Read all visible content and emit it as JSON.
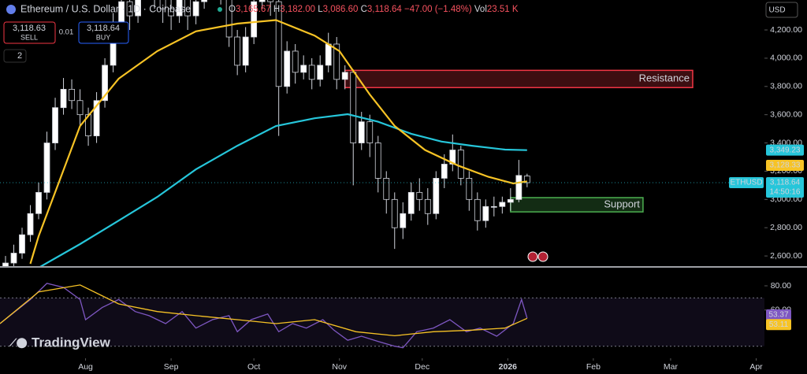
{
  "header": {
    "title": "Ethereum / U.S. Dollar · 1D · Coinbase",
    "ohlc": [
      {
        "label": "O",
        "value": "3,165.67"
      },
      {
        "label": "H",
        "value": "3,182.00"
      },
      {
        "label": "L",
        "value": "3,086.60"
      },
      {
        "label": "C",
        "value": "3,118.64"
      }
    ],
    "change": "−47.00 (−1.48%)",
    "volume_label": "Vol",
    "volume": "23.51 K"
  },
  "trade": {
    "sell_price": "3,118.63",
    "sell": "SELL",
    "spread": "0.01",
    "buy_price": "3,118.64",
    "buy": "BUY"
  },
  "indicator_count": "2",
  "currency": "USD",
  "brand": "TradingView",
  "chart_data": [
    {
      "type": "candlestick",
      "symbol": "ETHUSD",
      "last_price_label": "3,118.64",
      "countdown": "14:50:16",
      "up_color": "#ffffff",
      "down_color": "#000000",
      "x": [
        -29,
        -26,
        -23,
        -20,
        -17,
        -14,
        -11,
        -8,
        -5,
        -2,
        1,
        4,
        7,
        10,
        13,
        16,
        19,
        22,
        25,
        28,
        31,
        34,
        37,
        40,
        43,
        46,
        49,
        52,
        55,
        58,
        61,
        64,
        67,
        70,
        73,
        76,
        79,
        82,
        85,
        88,
        91,
        94,
        97,
        100,
        103,
        106,
        109,
        112,
        115,
        118,
        121,
        124,
        127,
        130,
        133,
        136,
        139,
        142,
        145,
        148,
        151,
        154,
        157,
        160
      ],
      "open": [
        2480,
        2550,
        2620,
        2750,
        2900,
        3050,
        3400,
        3650,
        3780,
        3700,
        3600,
        3450,
        3700,
        3950,
        4250,
        4400,
        4300,
        4650,
        4750,
        4450,
        4350,
        4300,
        4450,
        4300,
        4400,
        4500,
        4550,
        4450,
        4150,
        3950,
        4150,
        4400,
        4500,
        4400,
        3800,
        4050,
        3900,
        3950,
        3850,
        3950,
        4100,
        3850,
        3900,
        3400,
        3550,
        3400,
        3150,
        3000,
        2800,
        2900,
        3050,
        3000,
        2900,
        3150,
        3250,
        3350,
        3150,
        3000,
        2850,
        2950,
        2950,
        2980,
        3000,
        3165.67
      ],
      "high": [
        2600,
        2680,
        2800,
        2960,
        3120,
        3480,
        3720,
        3860,
        3850,
        3780,
        3650,
        3760,
        4000,
        4320,
        4480,
        4460,
        4720,
        4900,
        4800,
        4520,
        4420,
        4520,
        4500,
        4470,
        4580,
        4620,
        4620,
        4500,
        4200,
        4220,
        4480,
        4600,
        4560,
        4450,
        4120,
        4100,
        4020,
        4000,
        4020,
        4180,
        4150,
        3950,
        3920,
        3620,
        3600,
        3450,
        3200,
        3050,
        2980,
        3120,
        3150,
        3080,
        3200,
        3320,
        3460,
        3380,
        3200,
        3050,
        3000,
        3020,
        3020,
        3080,
        3280,
        3182
      ],
      "low": [
        2440,
        2500,
        2580,
        2700,
        2860,
        3000,
        3350,
        3600,
        3640,
        3520,
        3380,
        3400,
        3650,
        3900,
        4180,
        4200,
        4250,
        4580,
        4350,
        4250,
        4200,
        4250,
        4200,
        4240,
        4350,
        4420,
        4380,
        4080,
        3880,
        3900,
        4100,
        4350,
        4300,
        3450,
        3750,
        3820,
        3850,
        3780,
        3800,
        3900,
        3780,
        3780,
        3100,
        3350,
        3300,
        3050,
        2900,
        2650,
        2720,
        2850,
        2920,
        2820,
        2860,
        3080,
        3200,
        3100,
        2920,
        2780,
        2800,
        2880,
        2900,
        2920,
        2980,
        3086.6
      ],
      "close": [
        2550,
        2620,
        2750,
        2900,
        3050,
        3400,
        3650,
        3780,
        3700,
        3600,
        3450,
        3700,
        3950,
        4250,
        4400,
        4300,
        4650,
        4750,
        4450,
        4350,
        4300,
        4450,
        4300,
        4400,
        4500,
        4550,
        4450,
        4150,
        3950,
        4150,
        4400,
        4500,
        4400,
        3800,
        4050,
        3900,
        3950,
        3850,
        3950,
        4100,
        3850,
        3900,
        3400,
        3550,
        3400,
        3150,
        3000,
        2800,
        2900,
        3050,
        3000,
        2900,
        3150,
        3250,
        3350,
        3150,
        3000,
        2850,
        2950,
        2950,
        2980,
        3000,
        3170,
        3118.64
      ],
      "lines": [
        {
          "color": "#26c6da",
          "last_label": "3,349.23",
          "x": [
            -17,
            -2,
            12,
            26,
            40,
            55,
            69,
            83,
            95,
            106,
            118,
            129,
            140,
            152,
            160
          ],
          "values": [
            2517,
            2684,
            2850,
            3018,
            3213,
            3380,
            3520,
            3575,
            3604,
            3550,
            3465,
            3410,
            3380,
            3353,
            3349.23
          ]
        },
        {
          "color": "#f7c325",
          "last_label": "3,128.33",
          "x": [
            -20,
            -17,
            -2,
            12,
            26,
            40,
            55,
            69,
            83,
            92,
            103,
            112,
            123,
            135,
            146,
            155,
            160
          ],
          "values": [
            2545,
            2740,
            3520,
            3855,
            4050,
            4190,
            4245,
            4270,
            4160,
            4050,
            3743,
            3520,
            3350,
            3240,
            3160,
            3113,
            3128.33
          ]
        }
      ],
      "zones": [
        {
          "label": "Resistance",
          "x": [
            94,
            220
          ],
          "y": [
            3792,
            3914
          ],
          "color": "#f23645"
        },
        {
          "label": "Support",
          "x": [
            154,
            202
          ],
          "y": [
            2912,
            3013
          ],
          "color": "#4caf50"
        }
      ],
      "xlim": [
        -31,
        246
      ],
      "ylim": [
        2528,
        4412
      ],
      "yticks": [
        {
          "value": 2600,
          "label": "2,600.00"
        },
        {
          "value": 2800,
          "label": "2,800.00"
        },
        {
          "value": 3000,
          "label": "3,000.00"
        },
        {
          "value": 3200,
          "label": "3,200.00"
        },
        {
          "value": 3400,
          "label": "3,400.00"
        },
        {
          "value": 3600,
          "label": "3,600.00"
        },
        {
          "value": 3800,
          "label": "3,800.00"
        },
        {
          "value": 4000,
          "label": "4,000.00"
        },
        {
          "value": 4200,
          "label": "4,200.00"
        }
      ],
      "xticks": [
        {
          "value": 0,
          "label": "Aug"
        },
        {
          "value": 31,
          "label": "Sep"
        },
        {
          "value": 61,
          "label": "Oct"
        },
        {
          "value": 92,
          "label": "Nov"
        },
        {
          "value": 122,
          "label": "Dec"
        },
        {
          "value": 153,
          "label": "2026"
        },
        {
          "value": 184,
          "label": "Feb"
        },
        {
          "value": 212,
          "label": "Mar"
        },
        {
          "value": 243,
          "label": "Apr"
        }
      ]
    },
    {
      "type": "line",
      "ylim": [
        22,
        95
      ],
      "band": [
        30,
        70
      ],
      "yticks": [
        {
          "value": 80,
          "label": "80.00"
        },
        {
          "value": 60,
          "label": "60.00"
        }
      ],
      "series": [
        {
          "color": "#7e57c2",
          "last_label": "53.37",
          "x": [
            -31,
            -20,
            -14,
            -8,
            -2,
            0,
            6,
            12,
            18,
            23,
            29,
            35,
            40,
            46,
            52,
            55,
            60,
            66,
            70,
            75,
            80,
            86,
            90,
            95,
            100,
            106,
            112,
            115,
            120,
            126,
            132,
            138,
            143,
            149,
            155,
            158,
            160
          ],
          "values": [
            48.7,
            68.7,
            82,
            78.7,
            68.7,
            52,
            62,
            68.7,
            58.7,
            55.3,
            48.7,
            58.7,
            45,
            52,
            55.3,
            42,
            52,
            56.7,
            42,
            48.7,
            45,
            52,
            43.3,
            35,
            38.3,
            34,
            30,
            28.7,
            42,
            45,
            52,
            42,
            45,
            38.3,
            48.7,
            68.7,
            53.37
          ]
        },
        {
          "color": "#f7c325",
          "last_label": "53.11",
          "x": [
            -31,
            -17,
            -2,
            12,
            26,
            40,
            55,
            69,
            83,
            98,
            112,
            126,
            140,
            152,
            160
          ],
          "values": [
            48.7,
            75,
            80.7,
            65,
            58.7,
            55.3,
            52,
            48.7,
            52,
            42,
            38.7,
            42,
            43.3,
            45,
            53.11
          ]
        }
      ]
    }
  ]
}
